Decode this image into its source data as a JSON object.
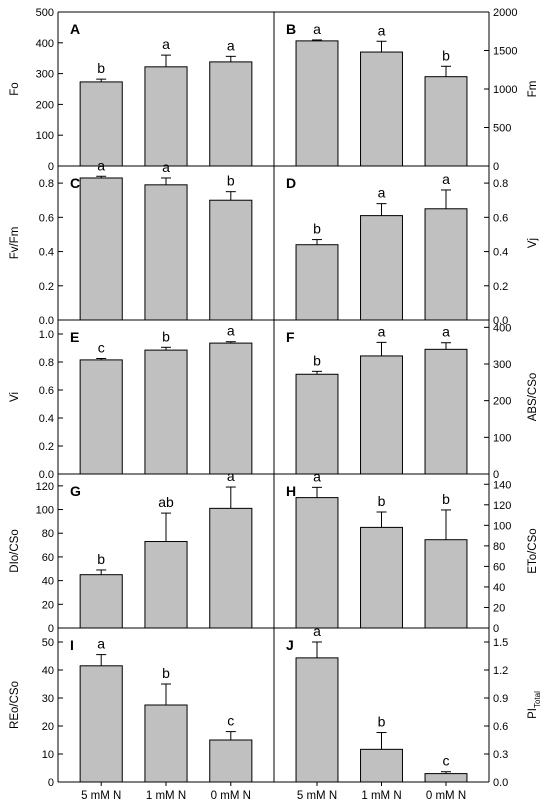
{
  "chart_data": {
    "type": "bar",
    "categories": [
      "5 mM N",
      "1 mM N",
      "0 mM N"
    ],
    "panels": [
      {
        "id": "A",
        "ylabel": "Fo",
        "ylim": [
          0,
          500
        ],
        "yticks": [
          0,
          100,
          200,
          300,
          400,
          500
        ],
        "tick_labels": [
          "0",
          "100",
          "200",
          "300",
          "400",
          "500"
        ],
        "values": [
          273,
          322,
          338
        ],
        "errors": [
          9,
          38,
          18
        ],
        "sig": [
          "b",
          "a",
          "a"
        ]
      },
      {
        "id": "B",
        "ylabel": "Fm",
        "ylim": [
          0,
          2000
        ],
        "yticks": [
          0,
          500,
          1000,
          1500,
          2000
        ],
        "tick_labels": [
          "0",
          "500",
          "1000",
          "1500",
          "2000"
        ],
        "values": [
          1625,
          1480,
          1160
        ],
        "errors": [
          12,
          140,
          135
        ],
        "sig": [
          "a",
          "a",
          "b"
        ]
      },
      {
        "id": "C",
        "ylabel": "Fv/Fm",
        "ylim": [
          0,
          0.9
        ],
        "yticks": [
          0,
          0.2,
          0.4,
          0.6,
          0.8
        ],
        "tick_labels": [
          "0.0",
          "0.2",
          "0.4",
          "0.6",
          "0.8"
        ],
        "values": [
          0.83,
          0.79,
          0.7
        ],
        "errors": [
          0.01,
          0.04,
          0.05
        ],
        "sig": [
          "a",
          "a",
          "b"
        ]
      },
      {
        "id": "D",
        "ylabel": "Vj",
        "ylim": [
          0,
          0.9
        ],
        "yticks": [
          0,
          0.2,
          0.4,
          0.6,
          0.8
        ],
        "tick_labels": [
          "0.0",
          "0.2",
          "0.4",
          "0.6",
          "0.8"
        ],
        "values": [
          0.44,
          0.61,
          0.65
        ],
        "errors": [
          0.03,
          0.07,
          0.11
        ],
        "sig": [
          "b",
          "a",
          "a"
        ]
      },
      {
        "id": "E",
        "ylabel": "Vi",
        "ylim": [
          0,
          1.1
        ],
        "yticks": [
          0,
          0.2,
          0.4,
          0.6,
          0.8,
          1.0
        ],
        "tick_labels": [
          "0.0",
          "0.2",
          "0.4",
          "0.6",
          "0.8",
          "1.0"
        ],
        "values": [
          0.815,
          0.885,
          0.935
        ],
        "errors": [
          0.01,
          0.02,
          0.01
        ],
        "sig": [
          "c",
          "b",
          "a"
        ]
      },
      {
        "id": "F",
        "ylabel": "ABS/CSo",
        "ylim": [
          0,
          420
        ],
        "yticks": [
          0,
          100,
          200,
          300,
          400
        ],
        "tick_labels": [
          "0",
          "100",
          "200",
          "300",
          "400"
        ],
        "values": [
          272,
          322,
          340
        ],
        "errors": [
          8,
          37,
          18
        ],
        "sig": [
          "b",
          "a",
          "a"
        ]
      },
      {
        "id": "G",
        "ylabel": "DIo/CSo",
        "ylim": [
          0,
          130
        ],
        "yticks": [
          0,
          20,
          40,
          60,
          80,
          100,
          120
        ],
        "tick_labels": [
          "0",
          "20",
          "40",
          "60",
          "80",
          "100",
          "120"
        ],
        "values": [
          45,
          73,
          101
        ],
        "errors": [
          4,
          24,
          18
        ],
        "sig": [
          "b",
          "ab",
          "a"
        ]
      },
      {
        "id": "H",
        "ylabel": "ETo/CSo",
        "ylim": [
          0,
          150
        ],
        "yticks": [
          0,
          20,
          40,
          60,
          80,
          100,
          120,
          140
        ],
        "tick_labels": [
          "0",
          "20",
          "40",
          "60",
          "80",
          "100",
          "120",
          "140"
        ],
        "values": [
          127,
          98,
          86
        ],
        "errors": [
          10,
          15,
          29
        ],
        "sig": [
          "a",
          "b",
          "b"
        ]
      },
      {
        "id": "I",
        "ylabel": "REo/CSo",
        "ylim": [
          0,
          55
        ],
        "yticks": [
          0,
          10,
          20,
          30,
          40,
          50
        ],
        "tick_labels": [
          "0",
          "10",
          "20",
          "30",
          "40",
          "50"
        ],
        "values": [
          41.5,
          27.5,
          15
        ],
        "errors": [
          4,
          7.5,
          3
        ],
        "sig": [
          "a",
          "b",
          "c"
        ]
      },
      {
        "id": "J",
        "ylabel": "PI",
        "ylabel_sub": "Total",
        "ylim": [
          0,
          1.65
        ],
        "yticks": [
          0,
          0.3,
          0.6,
          0.9,
          1.2,
          1.5
        ],
        "tick_labels": [
          "0.0",
          "0.3",
          "0.6",
          "0.9",
          "1.2",
          "1.5"
        ],
        "values": [
          1.33,
          0.35,
          0.09
        ],
        "errors": [
          0.17,
          0.18,
          0.02
        ],
        "sig": [
          "a",
          "b",
          "c"
        ]
      }
    ]
  }
}
